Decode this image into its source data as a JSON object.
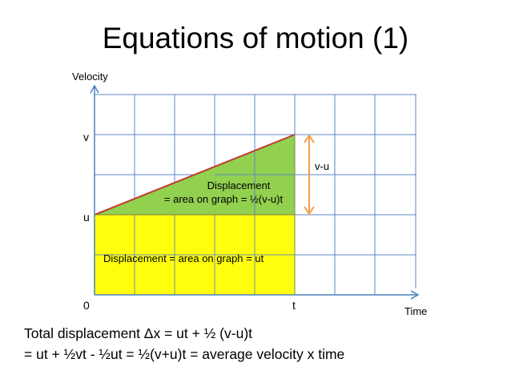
{
  "slide": {
    "title": "Equations of motion (1)",
    "equation_line1": "Total displacement Δx = ut + ½ (v-u)t",
    "equation_line2": "= ut + ½vt - ½ut = ½(v+u)t  = average velocity x time"
  },
  "graph": {
    "y_axis_label": "Velocity",
    "x_axis_label": "Time",
    "label_v": "v",
    "label_u": "u",
    "label_origin": "0",
    "label_t": "t",
    "label_v_minus_u": "v-u",
    "triangle_label_line1": "Displacement",
    "triangle_label_line2": "= area on graph = ½(v-u)t",
    "rectangle_label": "Displacement = area on graph = ut"
  },
  "colors": {
    "grid": "#5b86c6",
    "axis": "#4f81bd",
    "rectangle_fill": "#ffff00",
    "triangle_fill": "#92d050",
    "velocity_line": "#c0392b",
    "arrow": "#f39c4b"
  }
}
